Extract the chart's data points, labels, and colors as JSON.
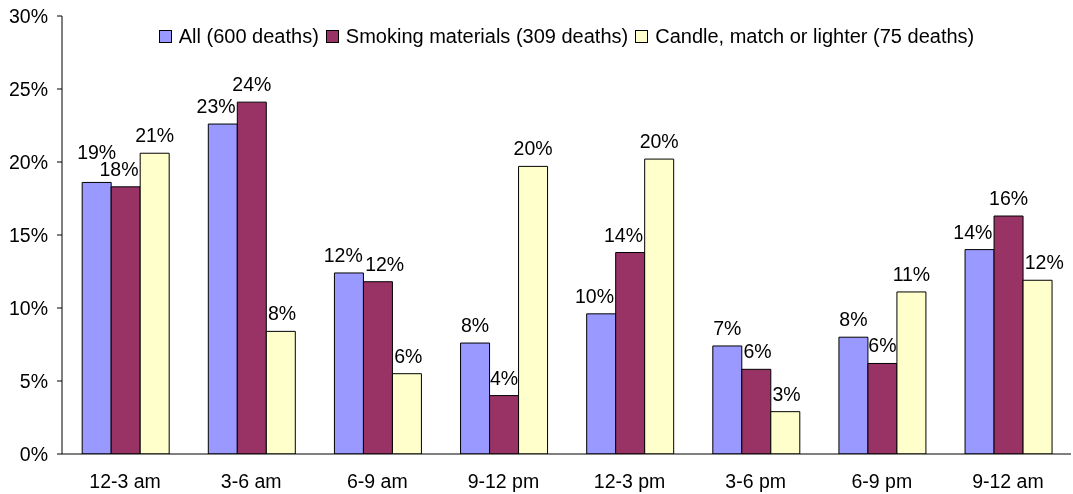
{
  "chart_data": {
    "type": "bar",
    "categories": [
      "12-3 am",
      "3-6 am",
      "6-9 am",
      "9-12 pm",
      "12-3 pm",
      "3-6 pm",
      "6-9 pm",
      "9-12 am"
    ],
    "series": [
      {
        "name": "All (600 deaths)",
        "color": "#9999ff",
        "values": [
          18.6,
          22.6,
          12.4,
          7.6,
          9.6,
          7.4,
          8.0,
          14.0
        ],
        "value_labels": [
          "19%",
          "23%",
          "12%",
          "8%",
          "10%",
          "7%",
          "8%",
          "14%"
        ]
      },
      {
        "name": "Smoking materials (309 deaths)",
        "color": "#993366",
        "values": [
          18.3,
          24.1,
          11.8,
          4.0,
          13.8,
          5.8,
          6.2,
          16.3
        ],
        "value_labels": [
          "18%",
          "24%",
          "12%",
          "4%",
          "14%",
          "6%",
          "6%",
          "16%"
        ]
      },
      {
        "name": "Candle, match or lighter (75 deaths)",
        "color": "#ffffcc",
        "values": [
          20.6,
          8.4,
          5.5,
          19.7,
          20.2,
          2.9,
          11.1,
          11.9
        ],
        "value_labels": [
          "21%",
          "8%",
          "6%",
          "20%",
          "20%",
          "3%",
          "11%",
          "12%"
        ]
      }
    ],
    "ylim": [
      0,
      30
    ],
    "yticks": [
      {
        "value": 0,
        "label": "0%"
      },
      {
        "value": 5,
        "label": "5%"
      },
      {
        "value": 10,
        "label": "10%"
      },
      {
        "value": 15,
        "label": "15%"
      },
      {
        "value": 20,
        "label": "20%"
      },
      {
        "value": 25,
        "label": "25%"
      },
      {
        "value": 30,
        "label": "30%"
      }
    ],
    "legend": "top"
  }
}
